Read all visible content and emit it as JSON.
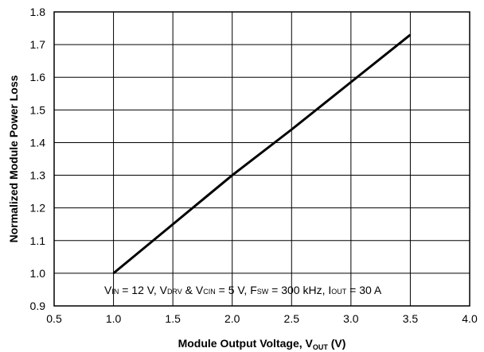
{
  "chart_data": {
    "type": "line",
    "xlabel": "Module Output Voltage, V",
    "xlabel_subscript": "OUT",
    "xlabel_suffix": " (V)",
    "ylabel": "Normalized Module Power Loss",
    "xlim": [
      0.5,
      4.0
    ],
    "ylim": [
      0.9,
      1.8
    ],
    "x_ticks": [
      0.5,
      1.0,
      1.5,
      2.0,
      2.5,
      3.0,
      3.5,
      4.0
    ],
    "y_ticks": [
      0.9,
      1.0,
      1.1,
      1.2,
      1.3,
      1.4,
      1.5,
      1.6,
      1.7,
      1.8
    ],
    "grid": true,
    "series": [
      {
        "x": [
          1.0,
          1.5,
          2.0,
          2.5,
          3.0,
          3.5
        ],
        "y": [
          1.0,
          1.15,
          1.3,
          1.44,
          1.585,
          1.73
        ]
      }
    ],
    "annotation_parts": [
      {
        "t": "V",
        "sub": false
      },
      {
        "t": "IN",
        "sub": true
      },
      {
        "t": " = 12 V, V",
        "sub": false
      },
      {
        "t": "DRV",
        "sub": true
      },
      {
        "t": " & V",
        "sub": false
      },
      {
        "t": "CIN",
        "sub": true
      },
      {
        "t": " = 5 V, F",
        "sub": false
      },
      {
        "t": "SW",
        "sub": true
      },
      {
        "t": " = 300 kHz, I",
        "sub": false
      },
      {
        "t": "OUT",
        "sub": true
      },
      {
        "t": " = 30 A",
        "sub": false
      }
    ]
  }
}
